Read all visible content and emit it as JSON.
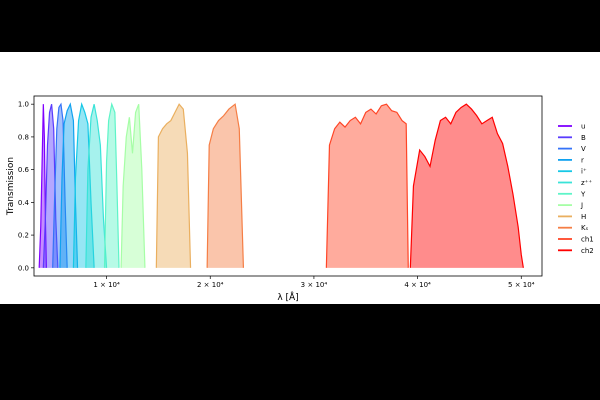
{
  "chart_data": {
    "type": "area",
    "xlabel": "λ [Å]",
    "ylabel": "Transmission",
    "xlim": [
      3000,
      52000
    ],
    "ylim": [
      -0.05,
      1.05
    ],
    "x_ticks": [
      {
        "value": 10000,
        "label": "1 × 10⁴"
      },
      {
        "value": 20000,
        "label": "2 × 10⁴"
      },
      {
        "value": 30000,
        "label": "3 × 10⁴"
      },
      {
        "value": 40000,
        "label": "4 × 10⁴"
      },
      {
        "value": 50000,
        "label": "5 × 10⁴"
      }
    ],
    "y_ticks": [
      {
        "value": 0.0,
        "label": "0.0"
      },
      {
        "value": 0.2,
        "label": "0.2"
      },
      {
        "value": 0.4,
        "label": "0.4"
      },
      {
        "value": 0.6,
        "label": "0.6"
      },
      {
        "value": 0.8,
        "label": "0.8"
      },
      {
        "value": 1.0,
        "label": "1.0"
      }
    ],
    "grid": false,
    "legend_position": "outside-right",
    "series": [
      {
        "name": "u",
        "color": "#8000ff",
        "x": [
          3500,
          3650,
          3800,
          3900,
          4000,
          4100,
          4200
        ],
        "y": [
          0,
          0.25,
          0.7,
          1.0,
          0.8,
          0.3,
          0
        ]
      },
      {
        "name": "B",
        "color": "#5a3cfe",
        "x": [
          3900,
          4100,
          4300,
          4500,
          4700,
          4900,
          5100,
          5300
        ],
        "y": [
          0,
          0.3,
          0.75,
          0.95,
          1.0,
          0.85,
          0.3,
          0
        ]
      },
      {
        "name": "V",
        "color": "#3573f8",
        "x": [
          4800,
          5000,
          5200,
          5400,
          5600,
          5800,
          6000,
          6200
        ],
        "y": [
          0,
          0.45,
          0.85,
          0.98,
          1.0,
          0.9,
          0.4,
          0
        ]
      },
      {
        "name": "r",
        "color": "#10a2f0",
        "x": [
          5500,
          5700,
          5900,
          6200,
          6500,
          6800,
          7000,
          7200
        ],
        "y": [
          0,
          0.55,
          0.88,
          0.96,
          1.0,
          0.9,
          0.4,
          0
        ]
      },
      {
        "name": "i⁺",
        "color": "#16c8e6",
        "x": [
          6800,
          7000,
          7300,
          7600,
          7900,
          8200,
          8500,
          8800
        ],
        "y": [
          0,
          0.55,
          0.9,
          1.0,
          0.95,
          0.88,
          0.4,
          0
        ]
      },
      {
        "name": "z⁺⁺",
        "color": "#3ae3d8",
        "x": [
          8000,
          8200,
          8500,
          8800,
          9100,
          9400,
          9700,
          10000
        ],
        "y": [
          0,
          0.6,
          0.92,
          1.0,
          0.9,
          0.75,
          0.3,
          0
        ]
      },
      {
        "name": "Y",
        "color": "#5ef4c8",
        "x": [
          9800,
          10000,
          10200,
          10500,
          10800,
          11000,
          11200
        ],
        "y": [
          0,
          0.65,
          0.9,
          1.0,
          0.95,
          0.5,
          0
        ]
      },
      {
        "name": "J",
        "color": "#a6fea6",
        "x": [
          11400,
          11600,
          11900,
          12200,
          12500,
          12800,
          13100,
          13400,
          13700
        ],
        "y": [
          0,
          0.5,
          0.8,
          0.92,
          0.7,
          0.95,
          1.0,
          0.6,
          0
        ]
      },
      {
        "name": "H",
        "color": "#eaaf5f",
        "x": [
          14800,
          15000,
          15400,
          15800,
          16200,
          16600,
          17000,
          17400,
          17800,
          18100
        ],
        "y": [
          0,
          0.8,
          0.85,
          0.88,
          0.9,
          0.95,
          1.0,
          0.97,
          0.7,
          0
        ]
      },
      {
        "name": "Kₛ",
        "color": "#f57e45",
        "x": [
          19700,
          19900,
          20300,
          20800,
          21300,
          21800,
          22400,
          22800,
          23200
        ],
        "y": [
          0,
          0.75,
          0.85,
          0.9,
          0.93,
          0.97,
          1.0,
          0.85,
          0
        ]
      },
      {
        "name": "ch1",
        "color": "#ff4526",
        "x": [
          31200,
          31500,
          32000,
          32500,
          33000,
          33500,
          34000,
          34500,
          35000,
          35500,
          36000,
          36500,
          37000,
          37500,
          38000,
          38500,
          38900,
          39100
        ],
        "y": [
          0,
          0.75,
          0.85,
          0.89,
          0.86,
          0.9,
          0.92,
          0.88,
          0.95,
          0.97,
          0.94,
          0.99,
          1.0,
          0.96,
          0.95,
          0.9,
          0.88,
          0
        ]
      },
      {
        "name": "ch2",
        "color": "#ff0000",
        "x": [
          39300,
          39600,
          40200,
          40700,
          41200,
          41700,
          42200,
          42700,
          43200,
          43700,
          44200,
          44700,
          45200,
          45700,
          46200,
          46700,
          47200,
          47700,
          48200,
          48700,
          49200,
          49700,
          50000,
          50200
        ],
        "y": [
          0,
          0.5,
          0.72,
          0.68,
          0.62,
          0.78,
          0.9,
          0.92,
          0.88,
          0.95,
          0.98,
          1.0,
          0.97,
          0.93,
          0.88,
          0.9,
          0.92,
          0.82,
          0.76,
          0.62,
          0.45,
          0.25,
          0.08,
          0
        ]
      }
    ]
  }
}
